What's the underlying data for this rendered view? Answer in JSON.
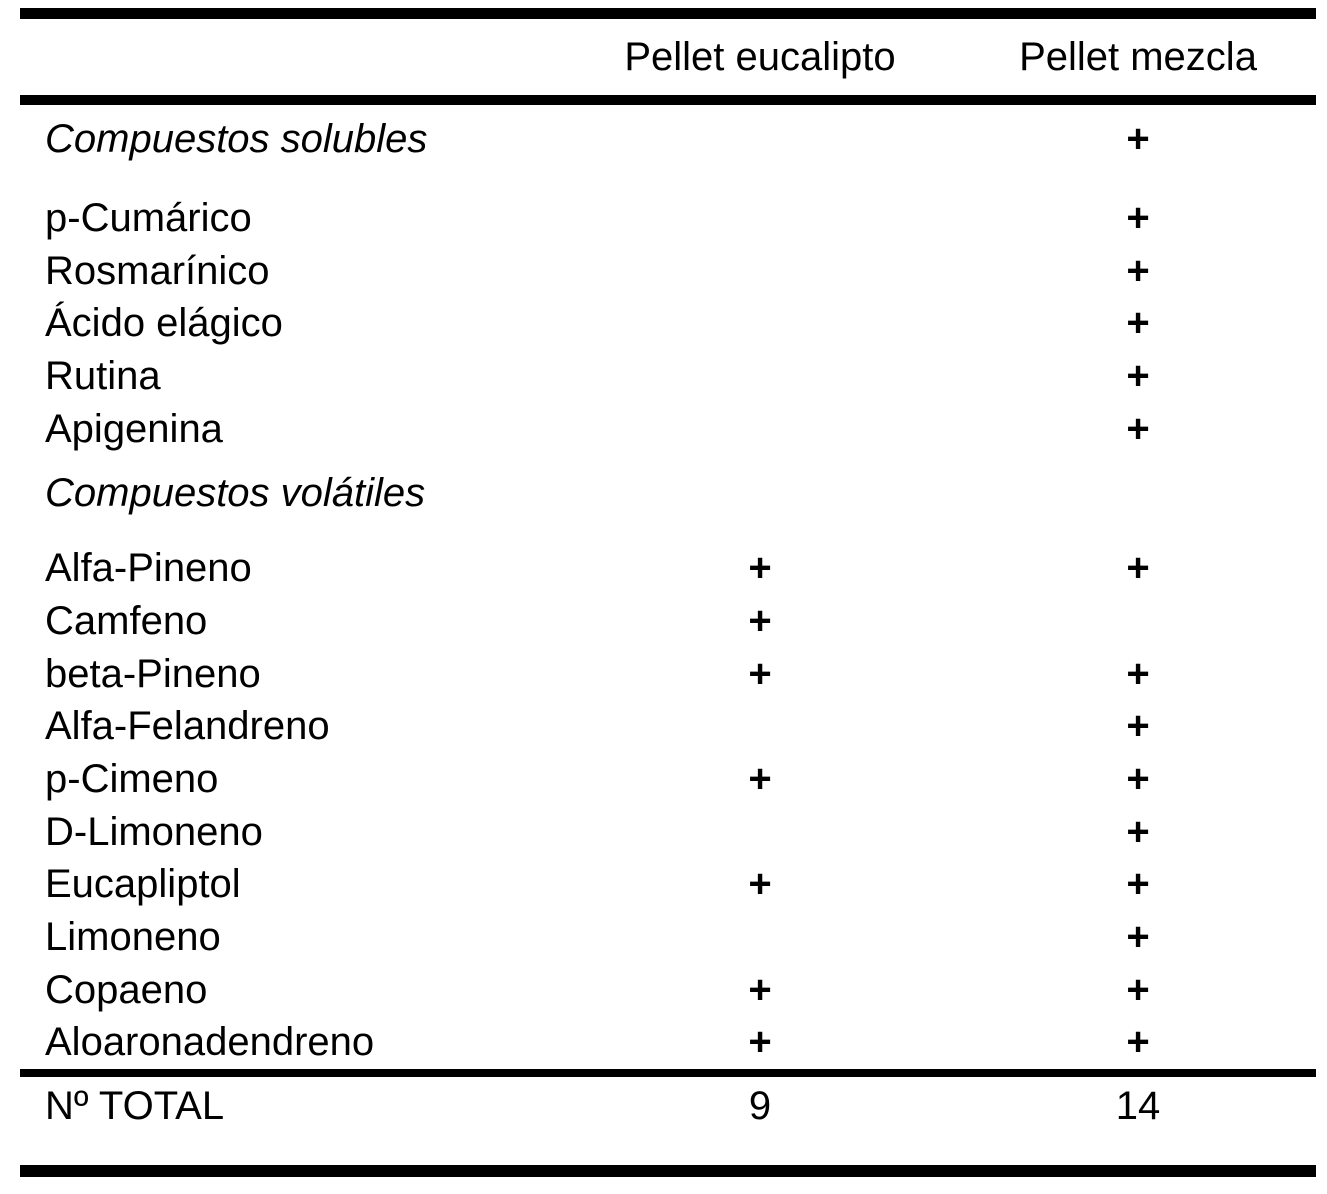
{
  "table": {
    "header": {
      "corner": "",
      "col_eucalipto": "Pellet eucalipto",
      "col_mezcla": "Pellet mezcla"
    },
    "rows": [
      {
        "name": "Compuestos solubles",
        "type": "section",
        "eucalipto": "",
        "mezcla": "+"
      },
      {
        "name": "p-Cumárico",
        "type": "compound",
        "eucalipto": "",
        "mezcla": "+"
      },
      {
        "name": "Rosmarínico",
        "type": "compound",
        "eucalipto": "",
        "mezcla": "+"
      },
      {
        "name": "Ácido elágico",
        "type": "compound",
        "eucalipto": "",
        "mezcla": "+"
      },
      {
        "name": "Rutina",
        "type": "compound",
        "eucalipto": "",
        "mezcla": "+"
      },
      {
        "name": "Apigenina",
        "type": "compound",
        "eucalipto": "",
        "mezcla": "+"
      },
      {
        "name": "Compuestos volátiles",
        "type": "section",
        "eucalipto": "",
        "mezcla": ""
      },
      {
        "name": "Alfa-Pineno",
        "type": "compound",
        "eucalipto": "+",
        "mezcla": "+"
      },
      {
        "name": "Camfeno",
        "type": "compound",
        "eucalipto": "+",
        "mezcla": ""
      },
      {
        "name": "beta-Pineno",
        "type": "compound",
        "eucalipto": "+",
        "mezcla": "+"
      },
      {
        "name": "Alfa-Felandreno",
        "type": "compound",
        "eucalipto": "",
        "mezcla": "+"
      },
      {
        "name": "p-Cimeno",
        "type": "compound",
        "eucalipto": "+",
        "mezcla": "+"
      },
      {
        "name": "D-Limoneno",
        "type": "compound",
        "eucalipto": "",
        "mezcla": "+"
      },
      {
        "name": "Eucapliptol",
        "type": "compound",
        "eucalipto": "+",
        "mezcla": "+"
      },
      {
        "name": "Limoneno",
        "type": "compound",
        "eucalipto": "",
        "mezcla": "+"
      },
      {
        "name": "Copaeno",
        "type": "compound",
        "eucalipto": "+",
        "mezcla": "+"
      },
      {
        "name": "Aloaronadendreno",
        "type": "compound",
        "eucalipto": "+",
        "mezcla": "+"
      }
    ],
    "total": {
      "label": "Nº TOTAL",
      "eucalipto": "9",
      "mezcla": "14"
    },
    "colors": {
      "text": "#000000",
      "background": "#ffffff",
      "rule": "#000000"
    }
  }
}
